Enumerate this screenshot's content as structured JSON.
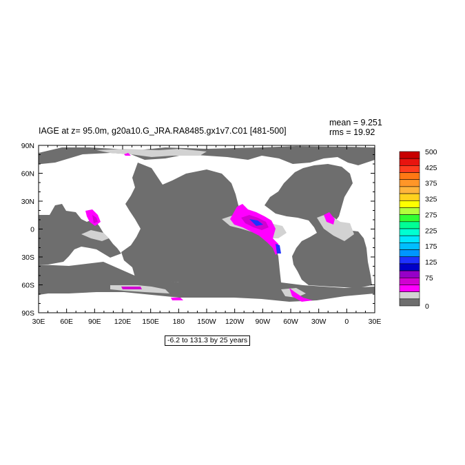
{
  "title": "IAGE at z=  95.0m, g20a10.G_JRA.RA8485.gx1v7.C01 [481-500]",
  "stats": {
    "mean": "mean = 9.251",
    "rms": "rms = 19.92"
  },
  "range_note": "-6.2 to 131.3 by 25 years",
  "axes": {
    "lat_labels": [
      "90N",
      "60N",
      "30N",
      "0",
      "30S",
      "60S",
      "90S"
    ],
    "lon_labels": [
      "30E",
      "60E",
      "90E",
      "120E",
      "150E",
      "180",
      "150W",
      "120W",
      "90W",
      "60W",
      "30W",
      "0",
      "30E"
    ]
  },
  "colorbar": {
    "labels": [
      "500",
      "425",
      "375",
      "325",
      "275",
      "225",
      "175",
      "125",
      "75",
      "0"
    ],
    "colors": [
      "#c80000",
      "#e8140f",
      "#ff3c1e",
      "#ff7814",
      "#ff9628",
      "#ffb43c",
      "#ffd21e",
      "#ffff00",
      "#b4ff3c",
      "#32ff32",
      "#00ff96",
      "#00ffd2",
      "#00e6ff",
      "#00beff",
      "#0096ff",
      "#1e32ff",
      "#0000c8",
      "#9600c8",
      "#d200d2",
      "#ff00ff",
      "#d2d2d2",
      "#6e6e6e"
    ]
  },
  "map_colors": {
    "land": "#ffffff",
    "ocean": "#6e6e6e",
    "low_age": "#d2d2d2"
  }
}
